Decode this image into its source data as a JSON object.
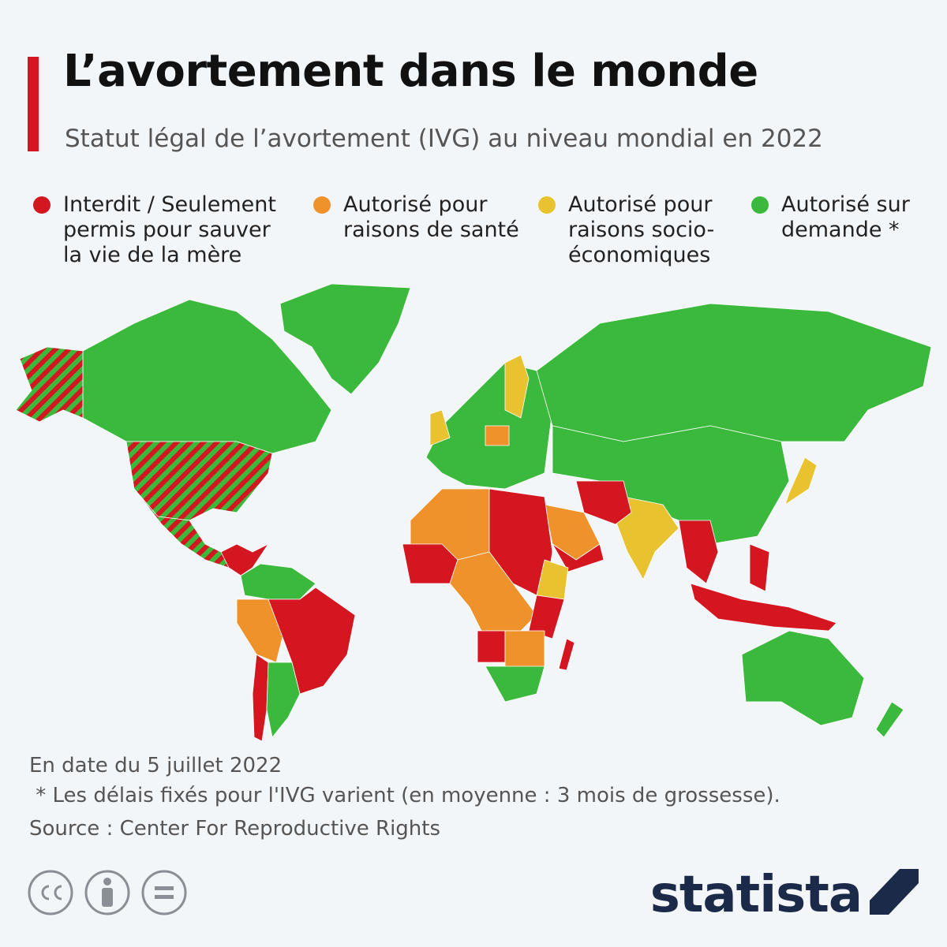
{
  "header": {
    "title": "L’avortement dans le monde",
    "subtitle": "Statut légal de l’avortement (IVG) au niveau mondial en 2022"
  },
  "legend": {
    "items": [
      {
        "label": "Interdit / Seulement permis pour sauver la vie de la mère",
        "color": "#d3161f"
      },
      {
        "label": "Autorisé pour raisons de santé",
        "color": "#ef922b"
      },
      {
        "label": "Autorisé pour raisons socio-économiques",
        "color": "#e8c22f"
      },
      {
        "label": "Autorisé sur demande *",
        "color": "#3bb93c"
      }
    ]
  },
  "footer": {
    "date": "En date du 5 juillet 2022",
    "note": " * Les délais fixés pour l'IVG varient (en moyenne : 3 mois de grossesse).",
    "source": "Source : Center For Reproductive Rights",
    "brand": "statista"
  }
}
